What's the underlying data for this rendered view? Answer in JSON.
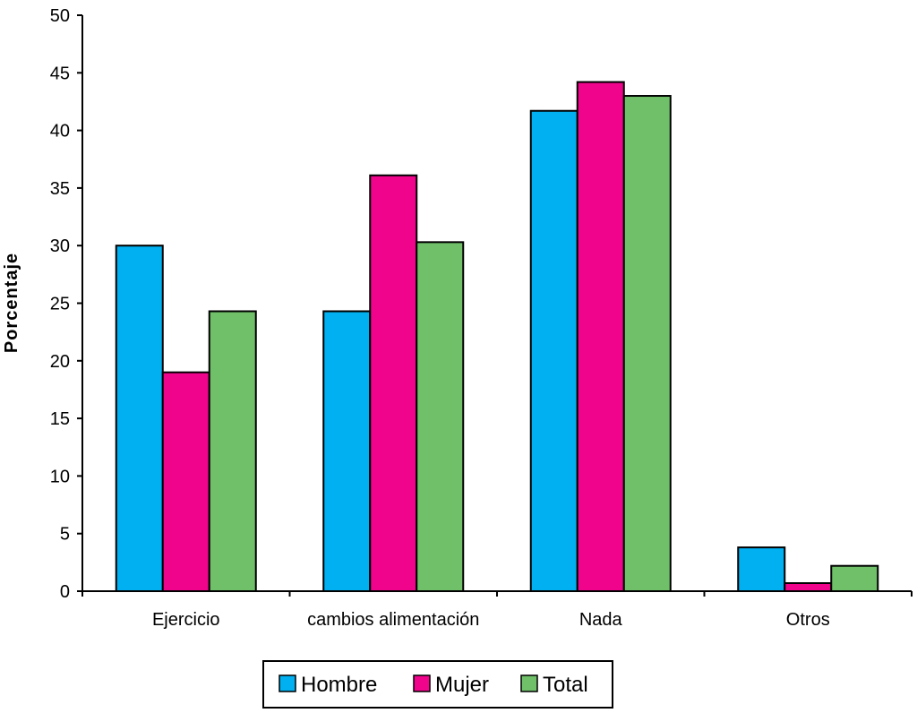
{
  "chart_data": {
    "type": "bar",
    "title": "",
    "xlabel": "",
    "ylabel": "Porcentaje",
    "ylim": [
      0,
      50
    ],
    "yticks": [
      0,
      5,
      10,
      15,
      20,
      25,
      30,
      35,
      40,
      45,
      50
    ],
    "grid": false,
    "legend_position": "bottom-center",
    "categories": [
      "Ejercicio",
      "cambios alimentación",
      "Nada",
      "Otros"
    ],
    "series": [
      {
        "name": "Hombre",
        "color": "#00B0F0",
        "values": [
          30.0,
          24.3,
          41.7,
          3.8
        ]
      },
      {
        "name": "Mujer",
        "color": "#F0048C",
        "values": [
          19.0,
          36.1,
          44.2,
          0.7
        ]
      },
      {
        "name": "Total",
        "color": "#6FC069",
        "values": [
          24.3,
          30.3,
          43.0,
          2.2
        ]
      }
    ]
  }
}
